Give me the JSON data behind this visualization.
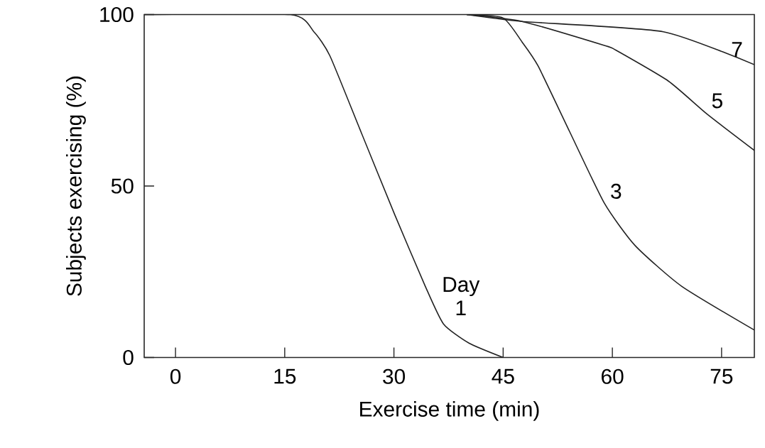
{
  "chart_data": {
    "type": "line",
    "xlabel": "Exercise time (min)",
    "ylabel": "Subjects exercising (%)",
    "xlim": [
      -4.3,
      79.5
    ],
    "ylim": [
      0,
      100
    ],
    "xticks": [
      0,
      15,
      30,
      45,
      60,
      75
    ],
    "yticks": [
      0,
      50,
      100
    ],
    "series": [
      {
        "name": "1",
        "color": "#222222",
        "x": [
          -4.3,
          15.8,
          19,
          21.2,
          25.3,
          30.1,
          34.3,
          36.8,
          40.3,
          45
        ],
        "values": [
          100,
          100,
          95,
          88,
          66.7,
          41.7,
          20.8,
          9.8,
          4.2,
          0
        ]
      },
      {
        "name": "3",
        "color": "#222222",
        "x": [
          40,
          45,
          47.6,
          49.8,
          54.1,
          58.9,
          63.1,
          69.5,
          79.5
        ],
        "values": [
          100,
          99,
          92,
          85,
          66,
          45,
          32.7,
          20.8,
          8
        ]
      },
      {
        "name": "5",
        "color": "#222222",
        "x": [
          40,
          47.6,
          58.9,
          60.5,
          67.7,
          73,
          79.5
        ],
        "values": [
          100,
          98,
          91,
          89.6,
          80.6,
          71,
          60.4
        ]
      },
      {
        "name": "7",
        "color": "#222222",
        "x": [
          40,
          47.6,
          67,
          79.5
        ],
        "values": [
          100,
          98,
          95,
          85.4
        ]
      }
    ],
    "annotations": [
      "Day"
    ]
  }
}
